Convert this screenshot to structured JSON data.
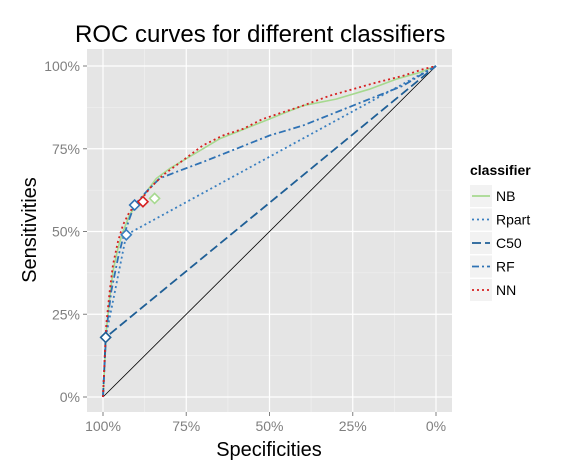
{
  "chart_data": {
    "type": "line",
    "title": "ROC curves for different classifiers",
    "xlabel": "Specificities",
    "ylabel": "Sensitivities",
    "x_reversed": true,
    "xlim": [
      1,
      0
    ],
    "ylim": [
      0,
      1
    ],
    "grid": true,
    "legend_position": "right",
    "legend_title": "classifier",
    "x_ticks": [
      {
        "value": 1.0,
        "label": "100%"
      },
      {
        "value": 0.75,
        "label": "75%"
      },
      {
        "value": 0.5,
        "label": "50%"
      },
      {
        "value": 0.25,
        "label": "25%"
      },
      {
        "value": 0.0,
        "label": "0%"
      }
    ],
    "y_ticks": [
      {
        "value": 0.0,
        "label": "0%"
      },
      {
        "value": 0.25,
        "label": "25%"
      },
      {
        "value": 0.5,
        "label": "50%"
      },
      {
        "value": 0.75,
        "label": "75%"
      },
      {
        "value": 1.0,
        "label": "100%"
      }
    ],
    "reference_line": {
      "from": [
        1,
        0
      ],
      "to": [
        0,
        1
      ],
      "color": "#000000"
    },
    "series": [
      {
        "name": "NB",
        "color": "#a6d98f",
        "dash": "solid",
        "points": [
          [
            1.0,
            0.0
          ],
          [
            0.995,
            0.1
          ],
          [
            0.99,
            0.2
          ],
          [
            0.98,
            0.3
          ],
          [
            0.97,
            0.38
          ],
          [
            0.955,
            0.45
          ],
          [
            0.94,
            0.5
          ],
          [
            0.92,
            0.55
          ],
          [
            0.9,
            0.58
          ],
          [
            0.87,
            0.62
          ],
          [
            0.84,
            0.66
          ],
          [
            0.8,
            0.69
          ],
          [
            0.75,
            0.72
          ],
          [
            0.7,
            0.75
          ],
          [
            0.65,
            0.78
          ],
          [
            0.6,
            0.8
          ],
          [
            0.55,
            0.82
          ],
          [
            0.5,
            0.84
          ],
          [
            0.45,
            0.86
          ],
          [
            0.4,
            0.88
          ],
          [
            0.3,
            0.9
          ],
          [
            0.2,
            0.93
          ],
          [
            0.12,
            0.96
          ],
          [
            0.05,
            0.98
          ],
          [
            0.0,
            1.0
          ]
        ],
        "threshold": [
          0.845,
          0.6
        ]
      },
      {
        "name": "Rpart",
        "color": "#3a7fc0",
        "dash": "dotted",
        "points": [
          [
            1.0,
            0.0
          ],
          [
            0.992,
            0.18
          ],
          [
            0.93,
            0.49
          ],
          [
            0.0,
            1.0
          ]
        ],
        "threshold": [
          0.93,
          0.49
        ]
      },
      {
        "name": "C50",
        "color": "#1f5f96",
        "dash": "longdash",
        "points": [
          [
            1.0,
            0.0
          ],
          [
            0.992,
            0.18
          ],
          [
            0.0,
            1.0
          ]
        ],
        "threshold": [
          0.992,
          0.18
        ]
      },
      {
        "name": "RF",
        "color": "#2f72b4",
        "dash": "dashdot",
        "points": [
          [
            1.0,
            0.0
          ],
          [
            0.99,
            0.2
          ],
          [
            0.975,
            0.32
          ],
          [
            0.955,
            0.42
          ],
          [
            0.94,
            0.48
          ],
          [
            0.92,
            0.54
          ],
          [
            0.905,
            0.58
          ],
          [
            0.87,
            0.62
          ],
          [
            0.83,
            0.66
          ],
          [
            0.78,
            0.68
          ],
          [
            0.7,
            0.71
          ],
          [
            0.6,
            0.75
          ],
          [
            0.5,
            0.79
          ],
          [
            0.4,
            0.82
          ],
          [
            0.3,
            0.86
          ],
          [
            0.2,
            0.9
          ],
          [
            0.1,
            0.94
          ],
          [
            0.05,
            0.97
          ],
          [
            0.0,
            1.0
          ]
        ],
        "threshold": [
          0.905,
          0.58
        ]
      },
      {
        "name": "NN",
        "color": "#d62020",
        "dash": "dotted",
        "points": [
          [
            1.0,
            0.0
          ],
          [
            0.995,
            0.12
          ],
          [
            0.99,
            0.22
          ],
          [
            0.98,
            0.32
          ],
          [
            0.97,
            0.4
          ],
          [
            0.955,
            0.47
          ],
          [
            0.94,
            0.52
          ],
          [
            0.92,
            0.56
          ],
          [
            0.89,
            0.59
          ],
          [
            0.86,
            0.63
          ],
          [
            0.82,
            0.67
          ],
          [
            0.78,
            0.7
          ],
          [
            0.74,
            0.73
          ],
          [
            0.7,
            0.76
          ],
          [
            0.64,
            0.79
          ],
          [
            0.58,
            0.81
          ],
          [
            0.52,
            0.84
          ],
          [
            0.46,
            0.86
          ],
          [
            0.4,
            0.88
          ],
          [
            0.32,
            0.91
          ],
          [
            0.25,
            0.93
          ],
          [
            0.18,
            0.95
          ],
          [
            0.1,
            0.97
          ],
          [
            0.04,
            0.99
          ],
          [
            0.0,
            1.0
          ]
        ],
        "threshold": [
          0.88,
          0.59
        ]
      }
    ]
  }
}
